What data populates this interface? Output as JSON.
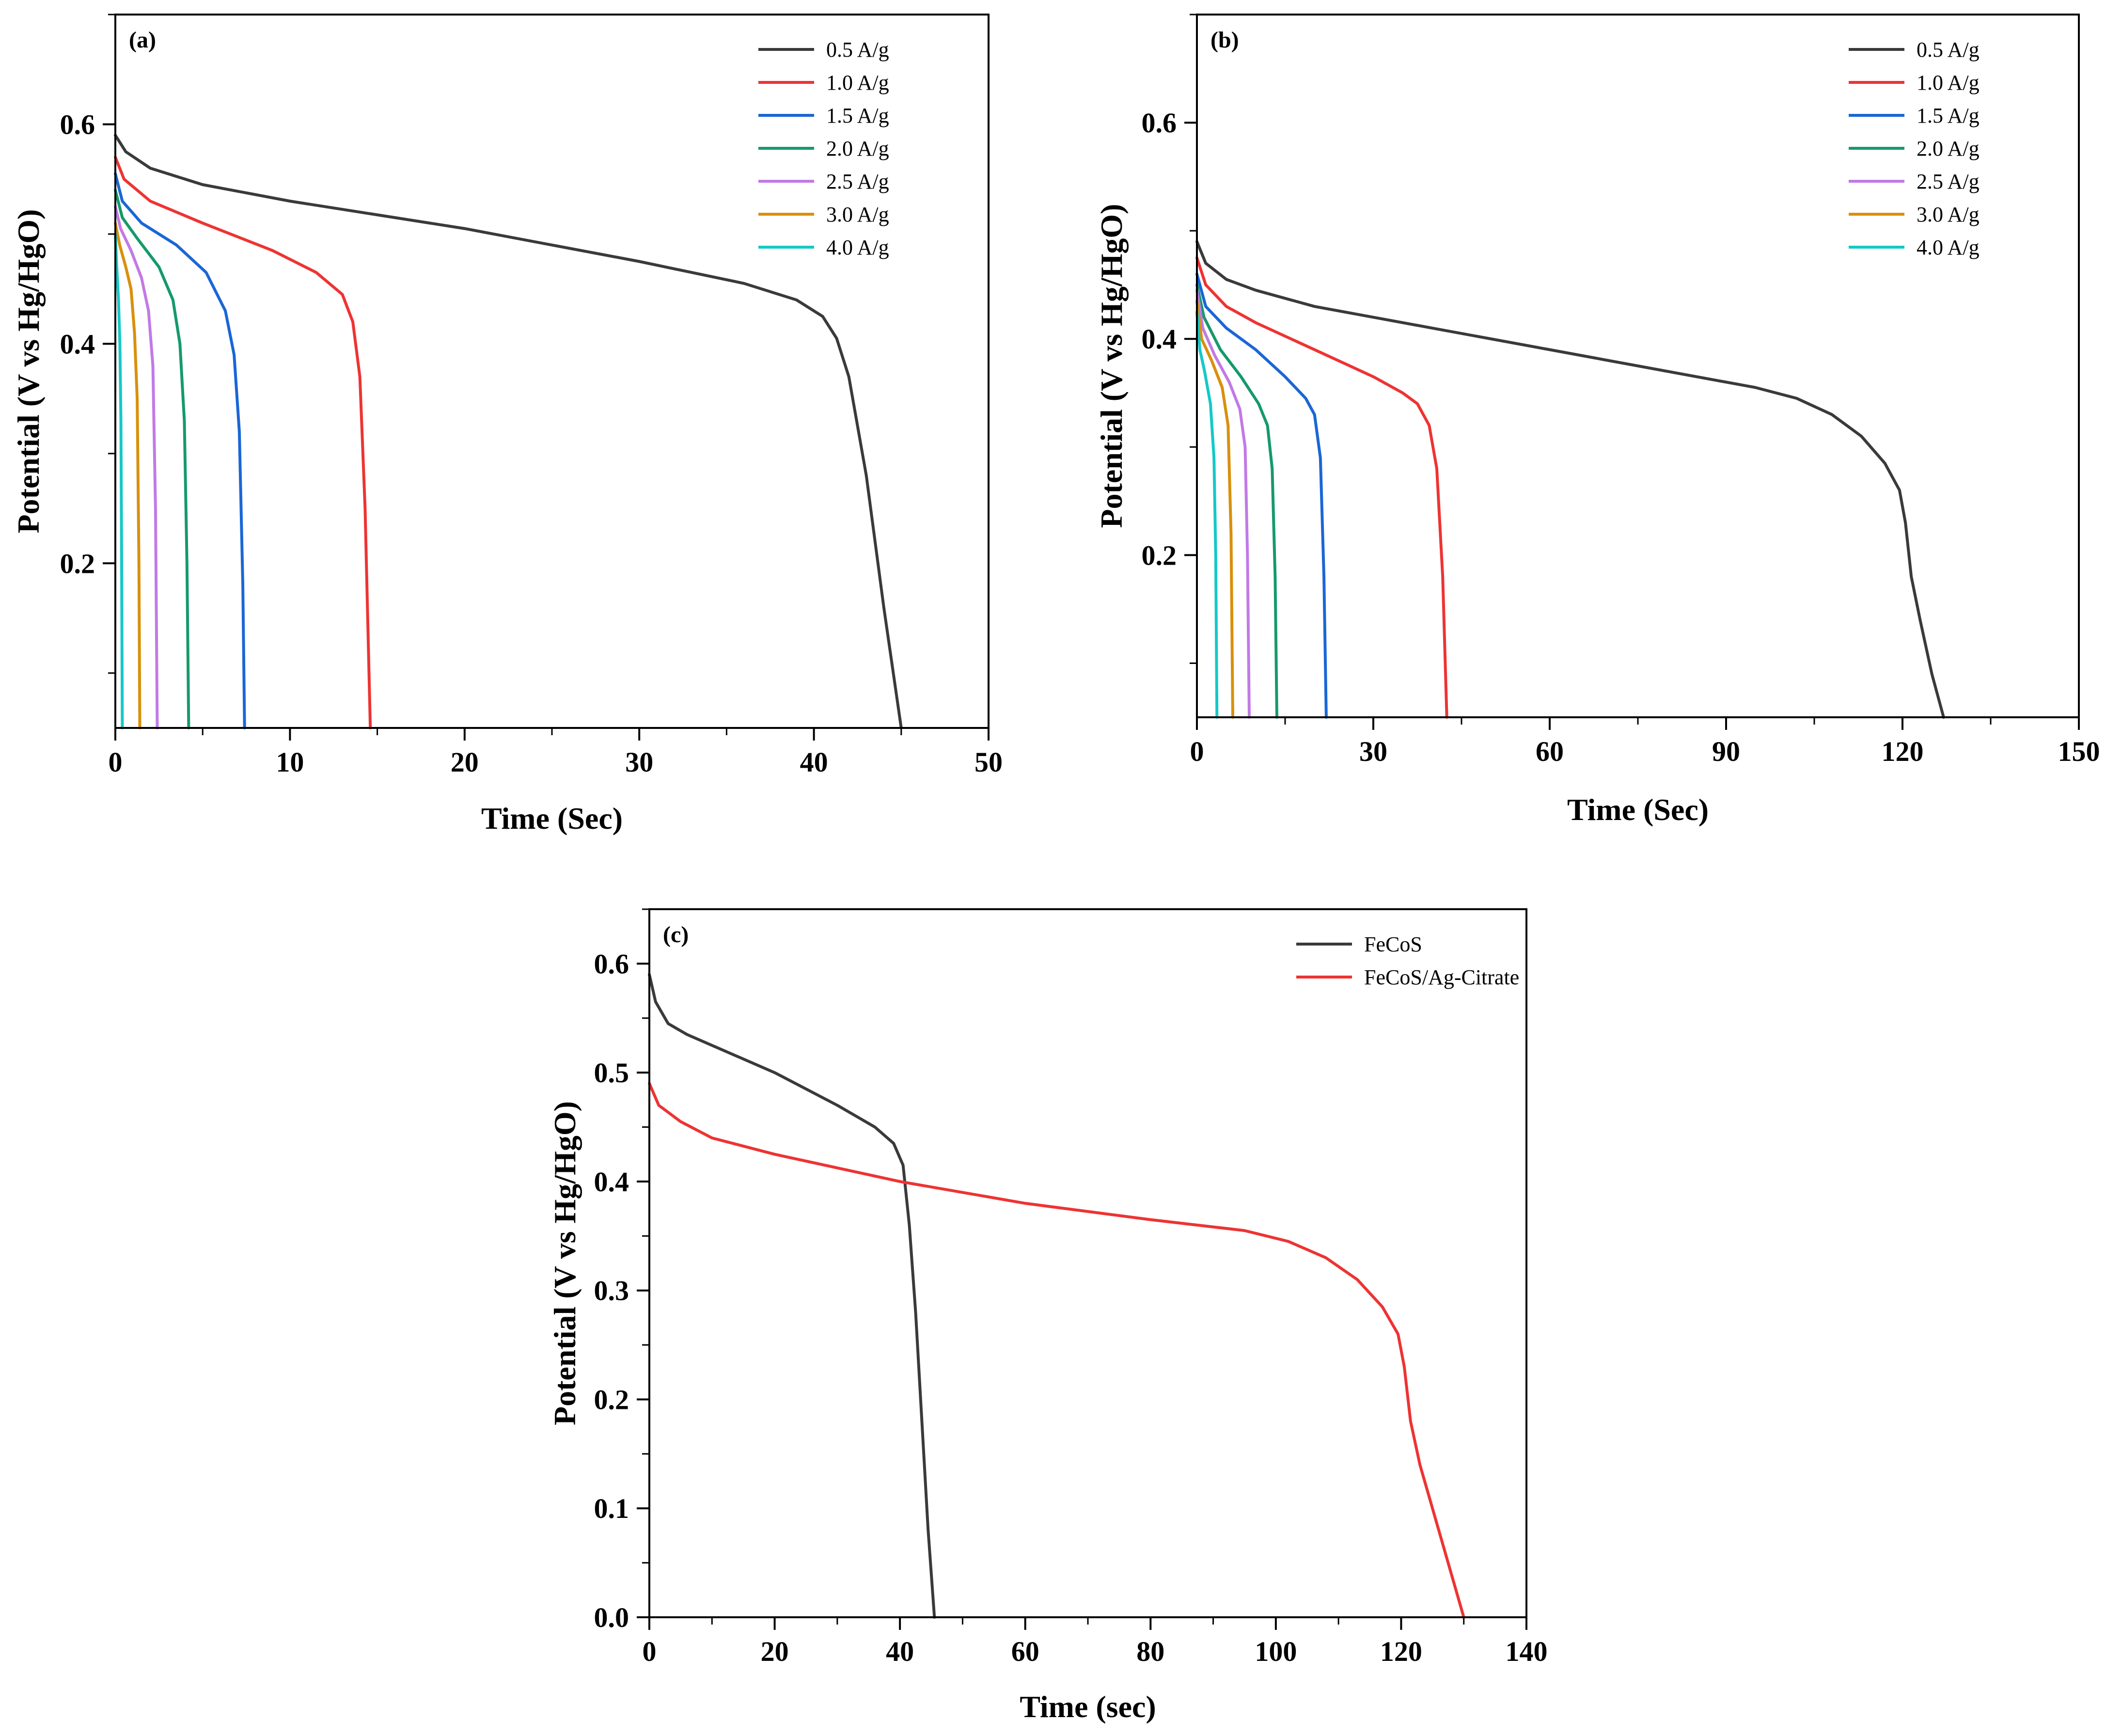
{
  "chart_data": [
    {
      "panel": "(a)",
      "type": "line",
      "xlabel": "Time (Sec)",
      "ylabel": "Potential (V vs Hg/HgO)",
      "xlim": [
        0,
        50
      ],
      "ylim": [
        0.05,
        0.7
      ],
      "xticks": [
        0,
        10,
        20,
        30,
        40,
        50
      ],
      "yticks": [
        0.2,
        0.4,
        0.6
      ],
      "legend_position": "top-right",
      "series": [
        {
          "name": "0.5 A/g",
          "color": "#3a3a3a",
          "x": [
            0,
            0.6,
            2,
            5,
            10,
            20,
            30,
            36,
            39,
            40.5,
            41.3,
            42,
            43,
            44,
            45
          ],
          "y": [
            0.59,
            0.575,
            0.56,
            0.545,
            0.53,
            0.505,
            0.475,
            0.455,
            0.44,
            0.425,
            0.405,
            0.37,
            0.28,
            0.16,
            0.05
          ]
        },
        {
          "name": "1.0 A/g",
          "color": "#ee3333",
          "x": [
            0,
            0.5,
            2,
            5,
            9,
            11.5,
            13,
            13.6,
            14,
            14.3,
            14.6
          ],
          "y": [
            0.57,
            0.55,
            0.53,
            0.51,
            0.485,
            0.465,
            0.445,
            0.42,
            0.37,
            0.25,
            0.05
          ]
        },
        {
          "name": "1.5 A/g",
          "color": "#1a66d6",
          "x": [
            0,
            0.4,
            1.5,
            3.5,
            5.2,
            6.3,
            6.8,
            7.1,
            7.3,
            7.4
          ],
          "y": [
            0.555,
            0.53,
            0.51,
            0.49,
            0.465,
            0.43,
            0.39,
            0.32,
            0.18,
            0.05
          ]
        },
        {
          "name": "2.0 A/g",
          "color": "#159a6a",
          "x": [
            0,
            0.4,
            1.3,
            2.5,
            3.3,
            3.7,
            3.95,
            4.1,
            4.2
          ],
          "y": [
            0.54,
            0.515,
            0.495,
            0.47,
            0.44,
            0.4,
            0.33,
            0.2,
            0.05
          ]
        },
        {
          "name": "2.5 A/g",
          "color": "#c17ae6",
          "x": [
            0,
            0.3,
            0.9,
            1.5,
            1.9,
            2.15,
            2.3,
            2.4
          ],
          "y": [
            0.525,
            0.505,
            0.485,
            0.46,
            0.43,
            0.38,
            0.25,
            0.05
          ]
        },
        {
          "name": "3.0 A/g",
          "color": "#d8900c",
          "x": [
            0,
            0.25,
            0.6,
            0.9,
            1.1,
            1.25,
            1.35,
            1.4
          ],
          "y": [
            0.51,
            0.49,
            0.47,
            0.45,
            0.41,
            0.35,
            0.2,
            0.05
          ]
        },
        {
          "name": "4.0 A/g",
          "color": "#15c8c8",
          "x": [
            0,
            0.08,
            0.18,
            0.26,
            0.32,
            0.36,
            0.4
          ],
          "y": [
            0.5,
            0.47,
            0.44,
            0.4,
            0.33,
            0.2,
            0.05
          ]
        }
      ]
    },
    {
      "panel": "(b)",
      "type": "line",
      "xlabel": "Time (Sec)",
      "ylabel": "Potential (V vs Hg/HgO)",
      "xlim": [
        0,
        150
      ],
      "ylim": [
        0.05,
        0.7
      ],
      "xticks": [
        0,
        30,
        60,
        90,
        120,
        150
      ],
      "yticks": [
        0.2,
        0.4,
        0.6
      ],
      "legend_position": "top-right",
      "series": [
        {
          "name": "0.5 A/g",
          "color": "#3a3a3a",
          "x": [
            0,
            1.5,
            5,
            10,
            20,
            40,
            60,
            80,
            95,
            102,
            108,
            113,
            117,
            119.5,
            120.5,
            121.5,
            123,
            125,
            127
          ],
          "y": [
            0.49,
            0.47,
            0.455,
            0.445,
            0.43,
            0.41,
            0.39,
            0.37,
            0.355,
            0.345,
            0.33,
            0.31,
            0.285,
            0.26,
            0.23,
            0.18,
            0.14,
            0.09,
            0.05
          ]
        },
        {
          "name": "1.0 A/g",
          "color": "#ee3333",
          "x": [
            0,
            1.5,
            5,
            10,
            20,
            30,
            35,
            37.5,
            39.5,
            40.8,
            41.8,
            42.5
          ],
          "y": [
            0.475,
            0.45,
            0.43,
            0.415,
            0.39,
            0.365,
            0.35,
            0.34,
            0.32,
            0.28,
            0.18,
            0.05
          ]
        },
        {
          "name": "1.5 A/g",
          "color": "#1a66d6",
          "x": [
            0,
            1.5,
            5,
            10,
            15,
            18.5,
            20,
            21,
            21.6,
            22
          ],
          "y": [
            0.46,
            0.43,
            0.41,
            0.39,
            0.365,
            0.345,
            0.33,
            0.29,
            0.18,
            0.05
          ]
        },
        {
          "name": "2.0 A/g",
          "color": "#159a6a",
          "x": [
            0,
            1.2,
            4,
            7.5,
            10.5,
            12,
            12.8,
            13.3,
            13.6
          ],
          "y": [
            0.45,
            0.42,
            0.39,
            0.365,
            0.34,
            0.32,
            0.28,
            0.18,
            0.05
          ]
        },
        {
          "name": "2.5 A/g",
          "color": "#c17ae6",
          "x": [
            0,
            1,
            3,
            5.5,
            7.3,
            8.2,
            8.6,
            8.9
          ],
          "y": [
            0.445,
            0.41,
            0.385,
            0.36,
            0.335,
            0.3,
            0.2,
            0.05
          ]
        },
        {
          "name": "3.0 A/g",
          "color": "#d8900c",
          "x": [
            0,
            0.8,
            2.5,
            4.3,
            5.3,
            5.8,
            6.1
          ],
          "y": [
            0.435,
            0.4,
            0.38,
            0.355,
            0.32,
            0.22,
            0.05
          ]
        },
        {
          "name": "4.0 A/g",
          "color": "#15c8c8",
          "x": [
            0,
            0.5,
            1.3,
            2.3,
            2.9,
            3.2,
            3.4
          ],
          "y": [
            0.425,
            0.39,
            0.37,
            0.34,
            0.29,
            0.2,
            0.05
          ]
        }
      ]
    },
    {
      "panel": "(c)",
      "type": "line",
      "xlabel": "Time (sec)",
      "ylabel": "Potential (V vs Hg/HgO)",
      "xlim": [
        0,
        140
      ],
      "ylim": [
        0,
        0.65
      ],
      "xticks": [
        0,
        20,
        40,
        60,
        80,
        100,
        120,
        140
      ],
      "yticks": [
        0.0,
        0.1,
        0.2,
        0.3,
        0.4,
        0.5,
        0.6
      ],
      "ytick_labels": [
        "0.0",
        "0.1",
        "0.2",
        "0.3",
        "0.4",
        "0.5",
        "0.6"
      ],
      "legend_position": "top-right",
      "series": [
        {
          "name": "FeCoS",
          "color": "#3a3a3a",
          "x": [
            0,
            1,
            3,
            6,
            10,
            20,
            30,
            36,
            39,
            40.5,
            41.5,
            42.5,
            43.5,
            44.5,
            45.5
          ],
          "y": [
            0.59,
            0.565,
            0.545,
            0.535,
            0.525,
            0.5,
            0.47,
            0.45,
            0.435,
            0.415,
            0.36,
            0.28,
            0.18,
            0.08,
            0.0
          ]
        },
        {
          "name": "FeCoS/Ag-Citrate",
          "color": "#ee3333",
          "x": [
            0,
            1.5,
            5,
            10,
            20,
            40,
            60,
            80,
            95,
            102,
            108,
            113,
            117,
            119.5,
            120.5,
            121.5,
            123,
            126,
            130
          ],
          "y": [
            0.49,
            0.47,
            0.455,
            0.44,
            0.425,
            0.4,
            0.38,
            0.365,
            0.355,
            0.345,
            0.33,
            0.31,
            0.285,
            0.26,
            0.23,
            0.18,
            0.14,
            0.08,
            0.0
          ]
        }
      ]
    }
  ]
}
